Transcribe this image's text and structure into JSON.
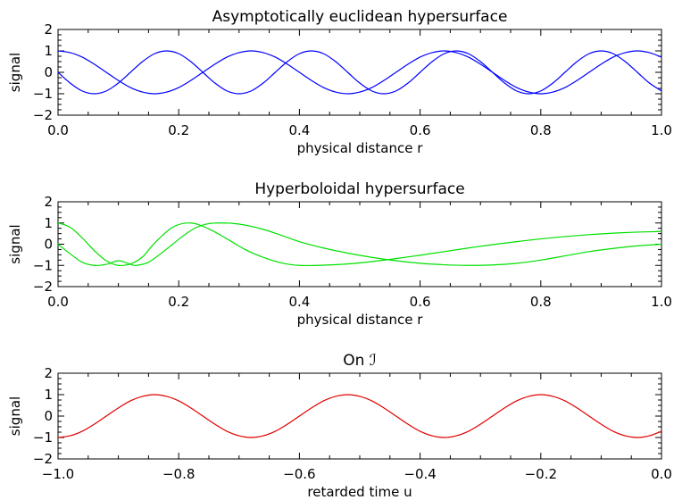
{
  "chart_data": [
    {
      "type": "line",
      "title": "Asymptotically euclidean hypersurface",
      "xlabel": "physical distance r",
      "ylabel": "signal",
      "xlim": [
        0.0,
        1.0
      ],
      "ylim": [
        -2,
        2
      ],
      "x_ticks": [
        "0.0",
        "0.2",
        "0.4",
        "0.6",
        "0.8",
        "1.0"
      ],
      "y_ticks": [
        "−2",
        "−1",
        "0",
        "1",
        "2"
      ],
      "grid": false,
      "line_color": "#0000ff",
      "series": [
        {
          "x": [
            0,
            0.02,
            0.04,
            0.06,
            0.08,
            0.1,
            0.12,
            0.14,
            0.16,
            0.18,
            0.2,
            0.22,
            0.24,
            0.26,
            0.28,
            0.3,
            0.32,
            0.34,
            0.36,
            0.38,
            0.4,
            0.42,
            0.44,
            0.46,
            0.48,
            0.5,
            0.52,
            0.54,
            0.56,
            0.58,
            0.6,
            0.62,
            0.64,
            0.66,
            0.68,
            0.7,
            0.72,
            0.74,
            0.76,
            0.78,
            0.8,
            0.82,
            0.84,
            0.86,
            0.88,
            0.9,
            0.92,
            0.94,
            0.96,
            0.98,
            1.0
          ],
          "values": [
            1.0,
            0.92,
            0.71,
            0.38,
            0.0,
            -0.38,
            -0.71,
            -0.92,
            -1.0,
            -0.92,
            -0.71,
            -0.38,
            0.0,
            0.38,
            0.71,
            0.92,
            1.0,
            0.92,
            0.71,
            0.38,
            0.0,
            -0.38,
            -0.71,
            -0.92,
            -1.0,
            -0.92,
            -0.71,
            -0.38,
            0.0,
            0.38,
            0.71,
            0.92,
            1.0,
            0.92,
            0.71,
            0.38,
            0.0,
            -0.38,
            -0.71,
            -0.92,
            -1.0,
            -0.92,
            -0.71,
            -0.38,
            0.0,
            0.38,
            0.71,
            0.92,
            1.0,
            0.92,
            0.71
          ]
        },
        {
          "x": [
            0,
            0.02,
            0.04,
            0.06,
            0.08,
            0.1,
            0.12,
            0.14,
            0.16,
            0.18,
            0.2,
            0.22,
            0.24,
            0.26,
            0.28,
            0.3,
            0.32,
            0.34,
            0.36,
            0.38,
            0.4,
            0.42,
            0.44,
            0.46,
            0.48,
            0.5,
            0.52,
            0.54,
            0.56,
            0.58,
            0.6,
            0.62,
            0.64,
            0.66,
            0.68,
            0.7,
            0.72,
            0.74,
            0.76,
            0.78,
            0.8,
            0.82,
            0.84,
            0.86,
            0.88,
            0.9,
            0.92,
            0.94,
            0.96,
            0.98,
            1.0
          ],
          "values": [
            0.0,
            -0.5,
            -0.87,
            -1.0,
            -0.87,
            -0.5,
            0.0,
            0.5,
            0.87,
            1.0,
            0.87,
            0.5,
            0.0,
            -0.5,
            -0.87,
            -1.0,
            -0.87,
            -0.5,
            0.0,
            0.5,
            0.87,
            1.0,
            0.87,
            0.5,
            0.0,
            -0.5,
            -0.87,
            -1.0,
            -0.87,
            -0.5,
            0.0,
            0.5,
            0.87,
            1.0,
            0.87,
            0.5,
            0.0,
            -0.5,
            -0.87,
            -1.0,
            -0.87,
            -0.5,
            0.0,
            0.5,
            0.87,
            1.0,
            0.87,
            0.5,
            0.0,
            -0.5,
            -0.87
          ]
        }
      ]
    },
    {
      "type": "line",
      "title": "Hyperboloidal hypersurface",
      "xlabel": "physical distance r",
      "ylabel": "signal",
      "xlim": [
        0.0,
        1.0
      ],
      "ylim": [
        -2,
        2
      ],
      "x_ticks": [
        "0.0",
        "0.2",
        "0.4",
        "0.6",
        "0.8",
        "1.0"
      ],
      "y_ticks": [
        "−2",
        "−1",
        "0",
        "1",
        "2"
      ],
      "grid": false,
      "line_color": "#00e000",
      "series": [
        {
          "x": [
            0,
            0.02,
            0.04,
            0.06,
            0.08,
            0.1,
            0.12,
            0.14,
            0.16,
            0.19,
            0.22,
            0.25,
            0.28,
            0.31,
            0.34,
            0.37,
            0.4,
            0.44,
            0.48,
            0.52,
            0.56,
            0.6,
            0.64,
            0.68,
            0.72,
            0.76,
            0.8,
            0.84,
            0.88,
            0.92,
            0.96,
            1.0
          ],
          "values": [
            1.0,
            0.8,
            0.3,
            -0.3,
            -0.78,
            -1.0,
            -0.93,
            -0.6,
            0.05,
            0.8,
            1.0,
            0.72,
            0.25,
            -0.25,
            -0.62,
            -0.88,
            -1.0,
            -0.99,
            -0.93,
            -0.82,
            -0.68,
            -0.52,
            -0.35,
            -0.18,
            -0.02,
            0.12,
            0.25,
            0.36,
            0.45,
            0.52,
            0.57,
            0.6
          ]
        },
        {
          "x": [
            0,
            0.02,
            0.04,
            0.06,
            0.08,
            0.1,
            0.12,
            0.13,
            0.15,
            0.17,
            0.19,
            0.21,
            0.23,
            0.25,
            0.27,
            0.29,
            0.31,
            0.34,
            0.37,
            0.4,
            0.44,
            0.48,
            0.52,
            0.56,
            0.6,
            0.64,
            0.68,
            0.72,
            0.76,
            0.8,
            0.84,
            0.88,
            0.92,
            0.96,
            1.0
          ],
          "values": [
            0.0,
            -0.45,
            -0.85,
            -1.0,
            -0.95,
            -0.78,
            -0.95,
            -1.0,
            -0.85,
            -0.45,
            0.0,
            0.45,
            0.8,
            0.97,
            1.0,
            0.98,
            0.9,
            0.7,
            0.42,
            0.12,
            -0.18,
            -0.42,
            -0.62,
            -0.78,
            -0.9,
            -0.97,
            -1.0,
            -0.98,
            -0.9,
            -0.75,
            -0.55,
            -0.35,
            -0.2,
            -0.08,
            0.0
          ]
        }
      ]
    },
    {
      "type": "line",
      "title": "On ℐ",
      "xlabel": "retarded time u",
      "ylabel": "signal",
      "xlim": [
        -1.0,
        0.0
      ],
      "ylim": [
        -2,
        2
      ],
      "x_ticks": [
        "−1.0",
        "−0.8",
        "−0.6",
        "−0.4",
        "−0.2",
        "0.0"
      ],
      "y_ticks": [
        "−2",
        "−1",
        "0",
        "1",
        "2"
      ],
      "grid": false,
      "line_color": "#e00000",
      "series": [
        {
          "x": [
            -1.0,
            -0.98,
            -0.96,
            -0.94,
            -0.92,
            -0.9,
            -0.88,
            -0.86,
            -0.84,
            -0.82,
            -0.8,
            -0.78,
            -0.76,
            -0.74,
            -0.72,
            -0.7,
            -0.68,
            -0.66,
            -0.64,
            -0.62,
            -0.6,
            -0.58,
            -0.56,
            -0.54,
            -0.52,
            -0.5,
            -0.48,
            -0.46,
            -0.44,
            -0.42,
            -0.4,
            -0.38,
            -0.36,
            -0.34,
            -0.32,
            -0.3,
            -0.28,
            -0.26,
            -0.24,
            -0.22,
            -0.2,
            -0.18,
            -0.16,
            -0.14,
            -0.12,
            -0.1,
            -0.08,
            -0.06,
            -0.04,
            -0.02,
            0.0
          ],
          "values": [
            -1.0,
            -0.92,
            -0.71,
            -0.38,
            0.0,
            0.38,
            0.71,
            0.92,
            1.0,
            0.92,
            0.71,
            0.38,
            0.0,
            -0.38,
            -0.71,
            -0.92,
            -1.0,
            -0.92,
            -0.71,
            -0.38,
            0.0,
            0.38,
            0.71,
            0.92,
            1.0,
            0.92,
            0.71,
            0.38,
            0.0,
            -0.38,
            -0.71,
            -0.92,
            -1.0,
            -0.92,
            -0.71,
            -0.38,
            0.0,
            0.38,
            0.71,
            0.92,
            1.0,
            0.92,
            0.71,
            0.38,
            0.0,
            -0.38,
            -0.71,
            -0.92,
            -1.0,
            -0.92,
            -0.71
          ]
        }
      ]
    }
  ]
}
